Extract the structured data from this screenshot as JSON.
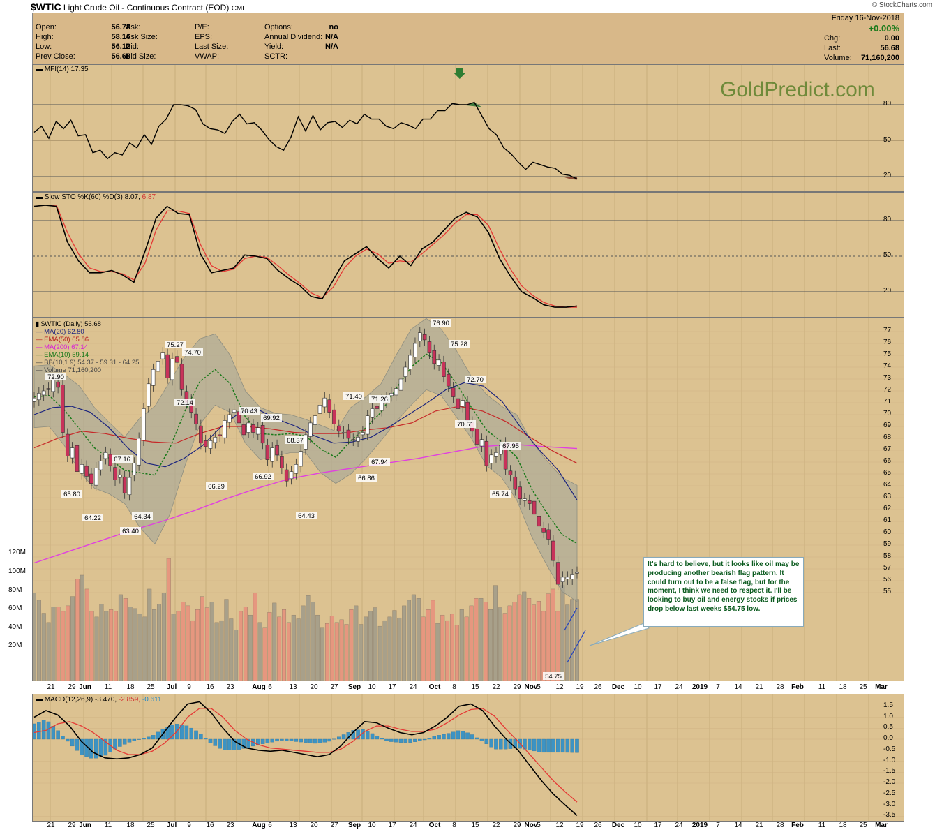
{
  "header": {
    "symbol": "$WTIC",
    "name": "Light Crude Oil - Continuous Contract (EOD)",
    "exchange": "CME",
    "copyright": "© StockCharts.com",
    "watermark": "GoldPredict.com",
    "date": "Friday  16-Nov-2018",
    "pct_change": "+0.00%"
  },
  "quote": {
    "col1": [
      {
        "label": "Open:",
        "value": "56.78"
      },
      {
        "label": "High:",
        "value": "58.16"
      },
      {
        "label": "Low:",
        "value": "56.12"
      },
      {
        "label": "Prev Close:",
        "value": "56.68"
      }
    ],
    "col2": [
      {
        "label": "Ask:"
      },
      {
        "label": "Ask Size:"
      },
      {
        "label": "Bid:"
      },
      {
        "label": "Bid Size:"
      }
    ],
    "col3": [
      {
        "label": "P/E:"
      },
      {
        "label": "EPS:"
      },
      {
        "label": "Last Size:"
      },
      {
        "label": "VWAP:"
      }
    ],
    "col4": [
      {
        "label": "Options:",
        "value": "no"
      },
      {
        "label": "Annual Dividend:",
        "value": "N/A"
      },
      {
        "label": "Yield:",
        "value": "N/A"
      },
      {
        "label": "SCTR:",
        "value": ""
      }
    ],
    "col5": [
      {
        "label": "Chg:",
        "value": "0.00"
      },
      {
        "label": "Last:",
        "value": "56.68"
      },
      {
        "label": "Volume:",
        "value": "71,160,200"
      }
    ]
  },
  "panels": {
    "mfi_label": "MFI(14) 17.35",
    "sto_label_black": "Slow STO %K(60) %D(3) 8.07,",
    "sto_label_red": "6.87",
    "price_legend": [
      {
        "text": "$WTIC (Daily) 56.68",
        "color": "#000000"
      },
      {
        "text": "MA(20) 62.80",
        "color": "#1a237e"
      },
      {
        "text": "EMA(50) 65.86",
        "color": "#b71c1c"
      },
      {
        "text": "MA(200) 67.14",
        "color": "#d81bd8"
      },
      {
        "text": "EMA(10) 59.14",
        "color": "#1b7a1b"
      },
      {
        "text": "BB(10,1.9) 54.37 - 59.31 - 64.25",
        "color": "#444444"
      },
      {
        "text": "Volume 71,160,200",
        "color": "#444444"
      }
    ],
    "macd_label_black": "MACD(12,26,9) -3.470,",
    "macd_label_red": "-2.859,",
    "macd_label_blue": "-0.611"
  },
  "callout": "It's hard to believe, but it looks like oil may be producing another bearish flag pattern. It could turn out to be a false flag, but for the moment, I think we need to respect it. I'll be looking to buy oil and energy stocks if prices drop below last weeks $54.75 low.",
  "colors": {
    "panel_bg": "#dcc291",
    "up_candle": "#ffffff",
    "down_candle": "#c8325a",
    "bb_fill": "#a9a99a",
    "vol_up": "#a8a08a",
    "vol_down": "#e6977f",
    "macd_hist": "#3d93c3"
  },
  "chart_data": [
    {
      "type": "line",
      "title": "MFI(14) 17.35",
      "ylim": [
        0,
        100
      ],
      "y_ticks": [
        "80",
        "50",
        "20"
      ],
      "series": [
        {
          "name": "MFI(14)",
          "values": [
            57,
            62,
            52,
            66,
            60,
            67,
            54,
            55,
            40,
            42,
            35,
            40,
            38,
            48,
            44,
            55,
            47,
            62,
            68,
            80,
            80,
            79,
            76,
            64,
            60,
            59,
            56,
            66,
            72,
            64,
            65,
            59,
            51,
            45,
            42,
            53,
            70,
            58,
            71,
            59,
            65,
            66,
            61,
            67,
            64,
            72,
            68,
            68,
            62,
            60,
            65,
            63,
            60,
            68,
            68,
            75,
            75,
            81,
            80,
            80,
            82,
            71,
            60,
            55,
            44,
            39,
            32,
            26,
            32,
            30,
            28,
            27,
            22,
            21,
            18
          ]
        }
      ]
    },
    {
      "type": "line",
      "title": "Slow STO %K(60) %D(3) 8.07, 6.87",
      "ylim": [
        0,
        100
      ],
      "y_ticks": [
        "80",
        "50",
        "20"
      ],
      "series": [
        {
          "name": "%K(60)",
          "values": [
            92,
            93,
            92,
            62,
            46,
            36,
            36,
            38,
            34,
            28,
            54,
            82,
            92,
            86,
            85,
            52,
            36,
            38,
            40,
            51,
            50,
            48,
            38,
            31,
            25,
            16,
            14,
            30,
            46,
            52,
            58,
            48,
            40,
            50,
            42,
            56,
            62,
            72,
            82,
            87,
            83,
            70,
            48,
            33,
            20,
            15,
            9,
            7,
            7,
            8
          ]
        },
        {
          "name": "%D(3)",
          "values": [
            92,
            93,
            93,
            70,
            52,
            40,
            37,
            37,
            35,
            30,
            44,
            72,
            88,
            88,
            86,
            60,
            42,
            37,
            39,
            48,
            50,
            49,
            42,
            34,
            27,
            19,
            15,
            24,
            40,
            50,
            56,
            52,
            44,
            46,
            45,
            52,
            60,
            68,
            78,
            85,
            85,
            76,
            56,
            39,
            25,
            17,
            11,
            8,
            7,
            7
          ]
        }
      ]
    },
    {
      "type": "line",
      "title": "$WTIC (Daily) 56.68",
      "ylim": [
        54,
        77.5
      ],
      "y_ticks": [
        "77",
        "76",
        "75",
        "74",
        "73",
        "72",
        "71",
        "70",
        "69",
        "68",
        "67",
        "66",
        "65",
        "64",
        "63",
        "62",
        "61",
        "60",
        "59",
        "58",
        "57",
        "56",
        "55"
      ],
      "annotations": [
        "72.90",
        "65.80",
        "64.22",
        "63.40",
        "67.16",
        "64.34",
        "75.27",
        "74.70",
        "72.14",
        "66.29",
        "70.43",
        "69.92",
        "68.37",
        "66.92",
        "64.43",
        "71.40",
        "71.26",
        "66.86",
        "67.94",
        "76.90",
        "75.28",
        "72.70",
        "70.51",
        "67.95",
        "65.74",
        "54.75"
      ],
      "series": [
        {
          "name": "$WTIC close",
          "values": [
            71.4,
            71.8,
            72.0,
            72.1,
            72.9,
            72.3,
            68.5,
            66.5,
            67.2,
            65.2,
            65.8,
            64.8,
            64.2,
            65.5,
            66.1,
            66.8,
            65.7,
            64.5,
            64.9,
            63.4,
            64.7,
            65.9,
            68.0,
            70.5,
            72.6,
            73.8,
            74.5,
            75.2,
            73.1,
            74.7,
            74.4,
            72.1,
            71.0,
            70.2,
            69.2,
            67.6,
            67.3,
            67.8,
            68.1,
            68.2,
            69.5,
            70.0,
            70.4,
            69.3,
            68.3,
            69.3,
            68.5,
            68.9,
            67.6,
            66.2,
            67.2,
            66.6,
            65.5,
            64.4,
            65.2,
            65.8,
            66.9,
            68.3,
            69.3,
            69.9,
            70.8,
            71.4,
            70.2,
            69.2,
            68.6,
            68.5,
            68.0,
            67.9,
            68.1,
            68.5,
            69.9,
            70.5,
            70.5,
            71.2,
            71.4,
            71.8,
            72.2,
            73.0,
            74.0,
            75.0,
            76.0,
            76.9,
            76.3,
            75.2,
            74.3,
            74.6,
            73.2,
            72.4,
            71.5,
            70.5,
            71.2,
            69.5,
            68.6,
            67.5,
            67.9,
            65.7,
            66.6,
            66.8,
            67.4,
            65.4,
            64.9,
            63.7,
            62.9,
            62.9,
            62.5,
            61.6,
            60.6,
            60.1,
            59.5,
            57.7,
            55.7,
            56.3,
            56.3,
            56.5,
            56.7
          ]
        },
        {
          "name": "MA(20) 62.80",
          "values": [
            70.0,
            70.6,
            70.7,
            70.2,
            68.9,
            67.2,
            65.9,
            65.6,
            66.3,
            67.4,
            69.0,
            70.2,
            70.4,
            69.6,
            69.0,
            68.2,
            67.6,
            67.7,
            68.1,
            69.0,
            70.0,
            71.0,
            72.1,
            72.7,
            72.4,
            71.1,
            68.9,
            67.0,
            65.3,
            62.8
          ]
        },
        {
          "name": "EMA(50) 65.86",
          "values": [
            67.2,
            68.0,
            68.6,
            68.4,
            68.0,
            67.7,
            67.6,
            68.4,
            69.0,
            69.0,
            68.8,
            68.5,
            68.4,
            68.4,
            68.7,
            68.9,
            69.3,
            70.3,
            70.7,
            70.3,
            69.4,
            68.1,
            66.9,
            65.9
          ]
        },
        {
          "name": "MA(200) 67.14",
          "values": [
            57.5,
            58.4,
            59.3,
            60.2,
            61.0,
            61.9,
            62.9,
            63.8,
            64.6,
            65.1,
            65.5,
            65.9,
            66.3,
            66.8,
            67.3,
            67.5,
            67.3,
            67.14
          ]
        },
        {
          "name": "EMA(10) 59.14",
          "values": [
            71.5,
            71.6,
            70.4,
            68.8,
            67.2,
            66.3,
            65.3,
            65.1,
            64.9,
            67.2,
            70.3,
            72.8,
            73.8,
            72.6,
            69.8,
            68.4,
            68.3,
            68.4,
            68.2,
            67.1,
            66.4,
            67.8,
            68.9,
            70.2,
            72.2,
            74.0,
            75.1,
            74.4,
            72.6,
            70.6,
            68.7,
            67.7,
            66.4,
            63.7,
            61.7,
            59.9,
            59.14
          ]
        }
      ]
    },
    {
      "type": "bar",
      "title": "Volume 71,160,200",
      "ylim": [
        0,
        140
      ],
      "y_ticks": [
        "120M",
        "100M",
        "80M",
        "60M",
        "40M",
        "20M"
      ],
      "series": [
        {
          "name": "Volume",
          "values": [
            78,
            70,
            56,
            46,
            63,
            63,
            58,
            64,
            74,
            93,
            97,
            82,
            58,
            52,
            66,
            58,
            60,
            58,
            76,
            72,
            63,
            61,
            55,
            52,
            82,
            60,
            66,
            78,
            115,
            55,
            58,
            68,
            64,
            48,
            60,
            74,
            62,
            68,
            46,
            48,
            71,
            50,
            38,
            58,
            63,
            54,
            78,
            46,
            40,
            57,
            67,
            52,
            60,
            46,
            54,
            50,
            64,
            75,
            68,
            54,
            40,
            45,
            53,
            46,
            49,
            44,
            60,
            64,
            44,
            52,
            58,
            62,
            42,
            48,
            52,
            59,
            51,
            64,
            70,
            76,
            72,
            52,
            60,
            70,
            45,
            54,
            48,
            55,
            43,
            60,
            52,
            64,
            72,
            72,
            68,
            60,
            86,
            62,
            56,
            64,
            68,
            76,
            79,
            72,
            65,
            69,
            58,
            77,
            82,
            58,
            86,
            65,
            71,
            71
          ]
        }
      ]
    },
    {
      "type": "line",
      "title": "MACD(12,26,9) -3.470, -2.859, -0.611",
      "ylim": [
        -3.7,
        1.75
      ],
      "y_ticks": [
        "1.5",
        "1.0",
        "0.5",
        "0.0",
        "-0.5",
        "-1.0",
        "-1.5",
        "-2.0",
        "-2.5",
        "-3.0",
        "-3.5"
      ],
      "series": [
        {
          "name": "MACD(12,26,9)",
          "values": [
            1.0,
            1.3,
            1.1,
            0.6,
            -0.1,
            -0.6,
            -0.85,
            -0.9,
            -0.85,
            -0.7,
            -0.4,
            0.3,
            1.0,
            1.6,
            1.7,
            1.2,
            0.5,
            -0.1,
            -0.4,
            -0.5,
            -0.55,
            -0.5,
            -0.6,
            -0.7,
            -0.8,
            -0.7,
            -0.3,
            0.3,
            0.8,
            0.75,
            0.5,
            0.3,
            0.2,
            0.3,
            0.6,
            1.0,
            1.5,
            1.6,
            1.3,
            0.6,
            0.0,
            -0.5,
            -1.2,
            -1.9,
            -2.5,
            -3.0,
            -3.47
          ]
        },
        {
          "name": "Signal",
          "values": [
            0.3,
            0.4,
            0.7,
            0.8,
            0.6,
            0.3,
            -0.1,
            -0.5,
            -0.7,
            -0.7,
            -0.55,
            -0.2,
            0.3,
            1.0,
            1.4,
            1.4,
            1.0,
            0.4,
            0.0,
            -0.25,
            -0.4,
            -0.45,
            -0.5,
            -0.55,
            -0.6,
            -0.6,
            -0.45,
            -0.1,
            0.35,
            0.6,
            0.6,
            0.45,
            0.35,
            0.35,
            0.45,
            0.75,
            1.1,
            1.35,
            1.4,
            1.05,
            0.45,
            -0.1,
            -0.7,
            -1.3,
            -1.9,
            -2.4,
            -2.859
          ]
        }
      ]
    }
  ]
}
